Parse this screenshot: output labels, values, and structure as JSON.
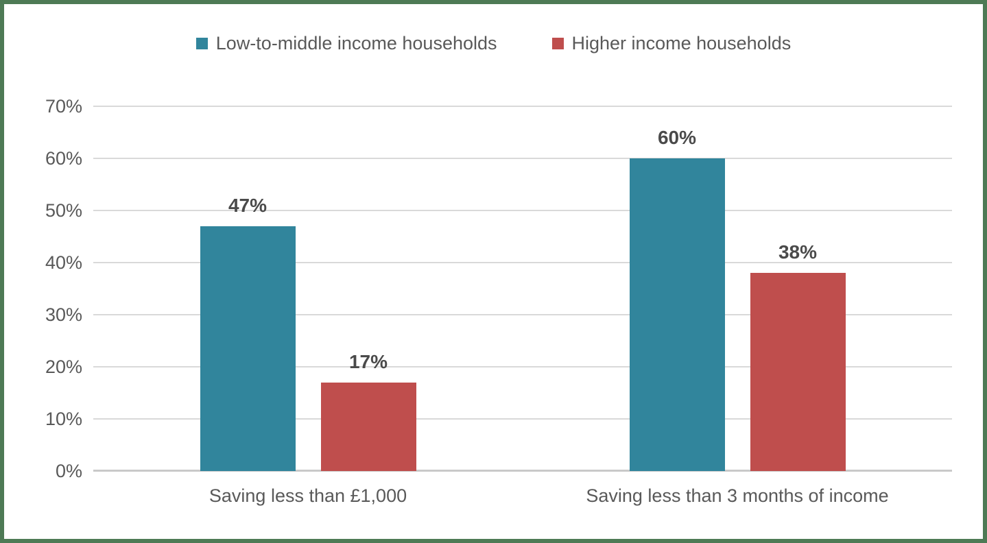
{
  "chart_data": {
    "type": "bar",
    "title": "",
    "xlabel": "",
    "ylabel": "",
    "ylim": [
      0,
      70
    ],
    "grid": "on",
    "legend_position": "top",
    "categories": [
      "Saving less than £1,000",
      "Saving less than 3 months of income"
    ],
    "series": [
      {
        "name": "Low-to-middle income households",
        "color": "#31859C",
        "values": [
          47,
          60
        ],
        "data_labels": [
          "47%",
          "60%"
        ]
      },
      {
        "name": "Higher income households",
        "color": "#BF4E4D",
        "values": [
          17,
          38
        ],
        "data_labels": [
          "17%",
          "38%"
        ]
      }
    ],
    "yticks": [
      {
        "value": 0,
        "label": "0%"
      },
      {
        "value": 10,
        "label": "10%"
      },
      {
        "value": 20,
        "label": "20%"
      },
      {
        "value": 30,
        "label": "30%"
      },
      {
        "value": 40,
        "label": "40%"
      },
      {
        "value": 50,
        "label": "50%"
      },
      {
        "value": 60,
        "label": "60%"
      },
      {
        "value": 70,
        "label": "70%"
      }
    ]
  },
  "colors": {
    "frame_border": "#4E7A55",
    "gridline": "#D9D9D9",
    "axis_line": "#C9C9C9",
    "tick_text": "#595959",
    "data_label_text": "#4A4A4A"
  }
}
